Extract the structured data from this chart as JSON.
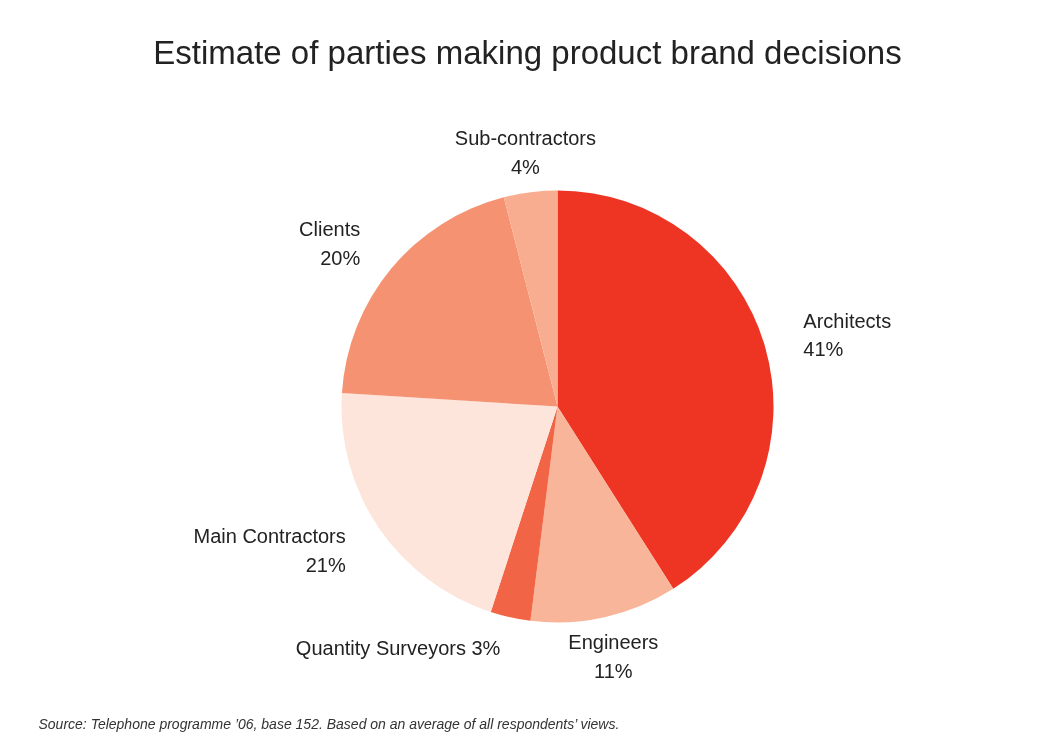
{
  "chart_data": {
    "type": "pie",
    "title": "Estimate of parties making product brand decisions",
    "categories": [
      "Architects",
      "Engineers",
      "Quantity Surveyors",
      "Main Contractors",
      "Clients",
      "Sub-contractors"
    ],
    "values": [
      41,
      11,
      3,
      21,
      20,
      4
    ],
    "colors": [
      "#ee3524",
      "#f9b59a",
      "#f26446",
      "#fde5dc",
      "#f59272",
      "#f9ad90"
    ],
    "value_labels": [
      "41%",
      "11%",
      "3%",
      "21%",
      "20%",
      "4%"
    ],
    "annotations": [
      "Source: Telephone programme ’06, base 152.  Based on an average of all respondents’ views."
    ]
  }
}
